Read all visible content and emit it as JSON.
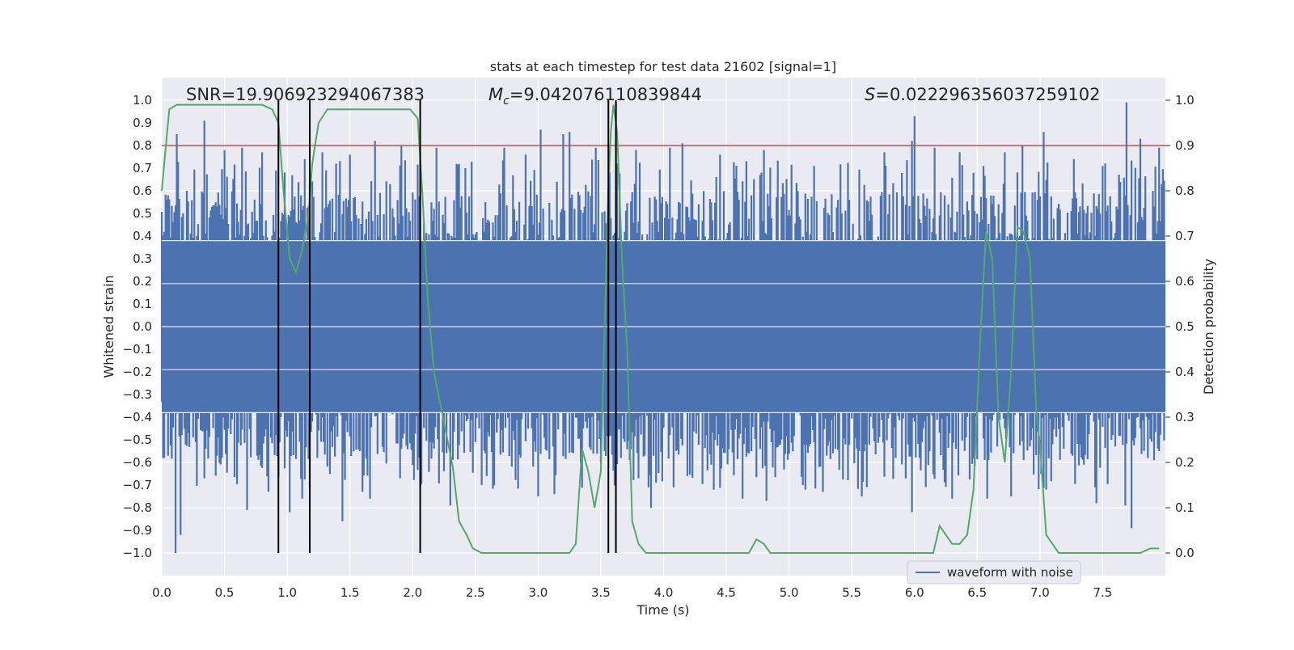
{
  "chart_data": {
    "type": "line",
    "title": "stats at each timestep for test data 21602 [signal=1]",
    "xlabel": "Time (s)",
    "ylabel_left": "Whitened strain",
    "ylabel_right": "Detection probability",
    "xlim": [
      0.0,
      8.0
    ],
    "ylim_left": [
      -1.1,
      1.1
    ],
    "ylim_right": [
      -0.05,
      1.05
    ],
    "grid": true,
    "legend_position": "lower-right",
    "x_ticks": [
      0.0,
      0.5,
      1.0,
      1.5,
      2.0,
      2.5,
      3.0,
      3.5,
      4.0,
      4.5,
      5.0,
      5.5,
      6.0,
      6.5,
      7.0,
      7.5
    ],
    "x_tick_labels": [
      "0.0",
      "0.5",
      "1.0",
      "1.5",
      "2.0",
      "2.5",
      "3.0",
      "3.5",
      "4.0",
      "4.5",
      "5.0",
      "5.5",
      "6.0",
      "6.5",
      "7.0",
      "7.5"
    ],
    "y_left_ticks": [
      1.0,
      0.9,
      0.8,
      0.7,
      0.6,
      0.5,
      0.4,
      0.3,
      0.2,
      0.1,
      0.0,
      -0.1,
      -0.2,
      -0.3,
      -0.4,
      -0.5,
      -0.6,
      -0.7,
      -0.8,
      -0.9,
      -1.0
    ],
    "y_left_tick_labels": [
      "1.0",
      "0.9",
      "0.8",
      "0.7",
      "0.6",
      "0.5",
      "0.4",
      "0.3",
      "0.2",
      "0.1",
      "0.0",
      "−0.1",
      "−0.2",
      "−0.3",
      "−0.4",
      "−0.5",
      "−0.6",
      "−0.7",
      "−0.8",
      "−0.9",
      "−1.0"
    ],
    "y_right_ticks": [
      1.0,
      0.9,
      0.8,
      0.7,
      0.6,
      0.5,
      0.4,
      0.3,
      0.2,
      0.1,
      0.0
    ],
    "y_right_tick_labels": [
      "1.0",
      "0.9",
      "0.8",
      "0.7",
      "0.6",
      "0.5",
      "0.4",
      "0.3",
      "0.2",
      "0.1",
      "0.0"
    ],
    "annotations": {
      "snr": "SNR=19.906923294067383",
      "mc_symbol": "M",
      "mc_sub": "c",
      "mc_value": "=9.042076110839844",
      "s_symbol": "S",
      "s_value": "=0.022296356037259102"
    },
    "legend": [
      {
        "label": "waveform with noise",
        "color": "#4c72b0"
      }
    ],
    "threshold": {
      "value_right_axis": 0.9,
      "color": "#c44e52"
    },
    "event_markers_x": [
      0.93,
      1.18,
      2.06,
      3.56,
      3.62
    ],
    "noise_series": {
      "name": "waveform with noise",
      "color": "#4c72b0",
      "peaks_max": [
        [
          0.05,
          0.58
        ],
        [
          0.12,
          0.85
        ],
        [
          0.34,
          0.91
        ],
        [
          0.5,
          0.78
        ],
        [
          0.64,
          0.79
        ],
        [
          0.8,
          0.77
        ],
        [
          1.14,
          0.74
        ],
        [
          1.28,
          0.77
        ],
        [
          1.5,
          0.76
        ],
        [
          1.7,
          0.82
        ],
        [
          1.91,
          0.8
        ],
        [
          2.19,
          0.79
        ],
        [
          2.42,
          0.7
        ],
        [
          2.73,
          0.79
        ],
        [
          2.9,
          0.76
        ],
        [
          3.02,
          0.87
        ],
        [
          3.2,
          0.85
        ],
        [
          3.25,
          0.86
        ],
        [
          3.46,
          0.79
        ],
        [
          3.62,
          0.99
        ],
        [
          3.78,
          0.78
        ],
        [
          4.05,
          0.79
        ],
        [
          4.15,
          0.81
        ],
        [
          4.45,
          0.76
        ],
        [
          4.8,
          0.78
        ],
        [
          5.2,
          0.71
        ],
        [
          5.76,
          0.77
        ],
        [
          5.98,
          0.82
        ],
        [
          6.0,
          0.93
        ],
        [
          6.16,
          0.79
        ],
        [
          6.36,
          0.77
        ],
        [
          6.55,
          0.71
        ],
        [
          6.72,
          0.77
        ],
        [
          6.86,
          0.8
        ],
        [
          7.03,
          0.86
        ],
        [
          7.27,
          0.74
        ],
        [
          7.5,
          0.71
        ],
        [
          7.69,
          0.99
        ],
        [
          7.8,
          0.83
        ],
        [
          7.95,
          0.79
        ]
      ],
      "peaks_min": [
        [
          0.02,
          -0.58
        ],
        [
          0.11,
          -1.0
        ],
        [
          0.15,
          -0.92
        ],
        [
          0.34,
          -0.67
        ],
        [
          0.68,
          -0.81
        ],
        [
          0.85,
          -0.73
        ],
        [
          1.02,
          -0.82
        ],
        [
          1.12,
          -0.76
        ],
        [
          1.44,
          -0.86
        ],
        [
          1.6,
          -0.73
        ],
        [
          1.66,
          -0.76
        ],
        [
          1.9,
          -0.67
        ],
        [
          2.06,
          -0.71
        ],
        [
          2.3,
          -0.79
        ],
        [
          2.55,
          -0.7
        ],
        [
          3.0,
          -0.75
        ],
        [
          3.13,
          -0.74
        ],
        [
          3.5,
          -0.6
        ],
        [
          3.9,
          -0.8
        ],
        [
          4.08,
          -0.71
        ],
        [
          4.4,
          -0.72
        ],
        [
          4.63,
          -0.76
        ],
        [
          4.82,
          -0.77
        ],
        [
          5.13,
          -0.72
        ],
        [
          5.27,
          -0.73
        ],
        [
          5.58,
          -0.75
        ],
        [
          5.98,
          -0.82
        ],
        [
          6.3,
          -0.76
        ],
        [
          6.58,
          -0.76
        ],
        [
          6.77,
          -0.75
        ],
        [
          7.05,
          -0.72
        ],
        [
          7.45,
          -0.78
        ],
        [
          7.68,
          -0.79
        ],
        [
          7.73,
          -0.89
        ],
        [
          7.95,
          -0.55
        ]
      ]
    },
    "probability_series": {
      "name": "detection probability",
      "color": "#55a868",
      "x": [
        0.0,
        0.06,
        0.12,
        0.2,
        0.3,
        0.4,
        0.5,
        0.6,
        0.7,
        0.8,
        0.88,
        0.93,
        0.97,
        1.02,
        1.07,
        1.12,
        1.17,
        1.2,
        1.25,
        1.32,
        1.4,
        1.5,
        1.6,
        1.7,
        1.8,
        1.9,
        1.98,
        2.04,
        2.08,
        2.12,
        2.17,
        2.22,
        2.27,
        2.32,
        2.37,
        2.43,
        2.48,
        2.55,
        2.62,
        2.7,
        2.8,
        2.9,
        3.0,
        3.1,
        3.2,
        3.25,
        3.3,
        3.35,
        3.4,
        3.45,
        3.5,
        3.53,
        3.56,
        3.58,
        3.6,
        3.63,
        3.67,
        3.71,
        3.75,
        3.8,
        3.86,
        3.92,
        3.95,
        3.99,
        4.05,
        4.12,
        4.2,
        4.3,
        4.4,
        4.5,
        4.6,
        4.68,
        4.74,
        4.8,
        4.85,
        4.9,
        5.0,
        5.2,
        5.4,
        5.6,
        5.8,
        6.0,
        6.1,
        6.15,
        6.2,
        6.25,
        6.3,
        6.36,
        6.42,
        6.47,
        6.52,
        6.57,
        6.62,
        6.67,
        6.72,
        6.77,
        6.82,
        6.87,
        6.92,
        6.97,
        7.0,
        7.05,
        7.1,
        7.15,
        7.2,
        7.25,
        7.3,
        7.4,
        7.5,
        7.6,
        7.7,
        7.8,
        7.88,
        7.95
      ],
      "y": [
        0.8,
        0.98,
        0.99,
        0.99,
        0.99,
        0.99,
        0.99,
        0.99,
        0.99,
        0.99,
        0.98,
        0.95,
        0.8,
        0.65,
        0.62,
        0.67,
        0.75,
        0.86,
        0.95,
        0.98,
        0.98,
        0.98,
        0.98,
        0.98,
        0.98,
        0.98,
        0.98,
        0.96,
        0.78,
        0.56,
        0.4,
        0.33,
        0.26,
        0.19,
        0.07,
        0.04,
        0.01,
        0.0,
        0.0,
        0.0,
        0.0,
        0.0,
        0.0,
        0.0,
        0.0,
        0.0,
        0.02,
        0.23,
        0.18,
        0.1,
        0.18,
        0.5,
        0.8,
        0.93,
        0.99,
        0.93,
        0.64,
        0.45,
        0.07,
        0.02,
        0.0,
        0.0,
        0.0,
        0.0,
        0.0,
        0.0,
        0.0,
        0.0,
        0.0,
        0.0,
        0.0,
        0.0,
        0.03,
        0.02,
        0.0,
        0.0,
        0.0,
        0.0,
        0.0,
        0.0,
        0.0,
        0.0,
        0.0,
        0.0,
        0.06,
        0.04,
        0.02,
        0.02,
        0.04,
        0.14,
        0.45,
        0.71,
        0.65,
        0.3,
        0.2,
        0.4,
        0.72,
        0.71,
        0.65,
        0.32,
        0.24,
        0.04,
        0.02,
        0.0,
        0.0,
        0.0,
        0.0,
        0.0,
        0.0,
        0.0,
        0.0,
        0.0,
        0.01,
        0.01
      ]
    }
  }
}
